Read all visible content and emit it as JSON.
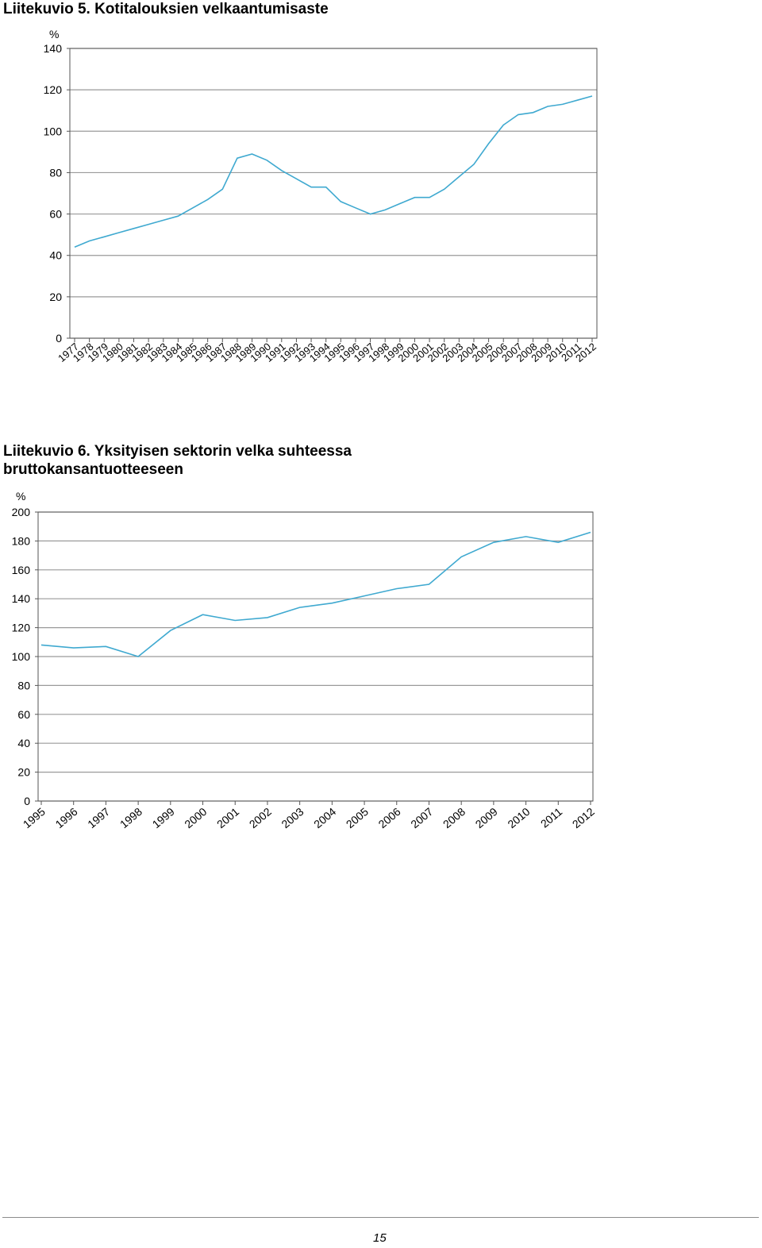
{
  "figure1": {
    "caption": "Liitekuvio 5. Kotitalouksien velkaantumisaste",
    "unit": "%",
    "line_color": "#3fa9d0",
    "grid_color": "#9a9a9a"
  },
  "figure2": {
    "caption": "Liitekuvio 6. Yksityisen sektorin velka suhteessa bruttokansantuotteeseen",
    "unit": "%",
    "line_color": "#3fa9d0",
    "grid_color": "#9a9a9a"
  },
  "footer": {
    "page_number": "15"
  },
  "chart_data": [
    {
      "type": "line",
      "title": "Liitekuvio 5. Kotitalouksien velkaantumisaste",
      "ylabel": "%",
      "ylim": [
        0,
        140
      ],
      "yticks": [
        0,
        20,
        40,
        60,
        80,
        100,
        120,
        140
      ],
      "grid": true,
      "categories": [
        "1977",
        "1978",
        "1979",
        "1980",
        "1981",
        "1982",
        "1983",
        "1984",
        "1985",
        "1986",
        "1987",
        "1988",
        "1989",
        "1990",
        "1991",
        "1992",
        "1993",
        "1994",
        "1995",
        "1996",
        "1997",
        "1998",
        "1999",
        "2000",
        "2001",
        "2002",
        "2003",
        "2004",
        "2005",
        "2006",
        "2007",
        "2008",
        "2009",
        "2010",
        "2011",
        "2012"
      ],
      "series": [
        {
          "values": [
            44,
            47,
            49,
            51,
            53,
            55,
            57,
            59,
            63,
            67,
            72,
            87,
            89,
            86,
            81,
            77,
            73,
            73,
            66,
            63,
            60,
            62,
            65,
            68,
            68,
            72,
            78,
            84,
            94,
            103,
            108,
            109,
            112,
            113,
            115,
            117
          ]
        }
      ]
    },
    {
      "type": "line",
      "title": "Liitekuvio 6. Yksityisen sektorin velka suhteessa bruttokansantuotteeseen",
      "ylabel": "%",
      "ylim": [
        0,
        200
      ],
      "yticks": [
        0,
        20,
        40,
        60,
        80,
        100,
        120,
        140,
        160,
        180,
        200
      ],
      "grid": true,
      "categories": [
        "1995",
        "1996",
        "1997",
        "1998",
        "1999",
        "2000",
        "2001",
        "2002",
        "2003",
        "2004",
        "2005",
        "2006",
        "2007",
        "2008",
        "2009",
        "2010",
        "2011",
        "2012"
      ],
      "series": [
        {
          "values": [
            108,
            106,
            107,
            100,
            118,
            129,
            125,
            127,
            134,
            137,
            142,
            147,
            150,
            169,
            179,
            183,
            179,
            186
          ]
        }
      ]
    }
  ]
}
